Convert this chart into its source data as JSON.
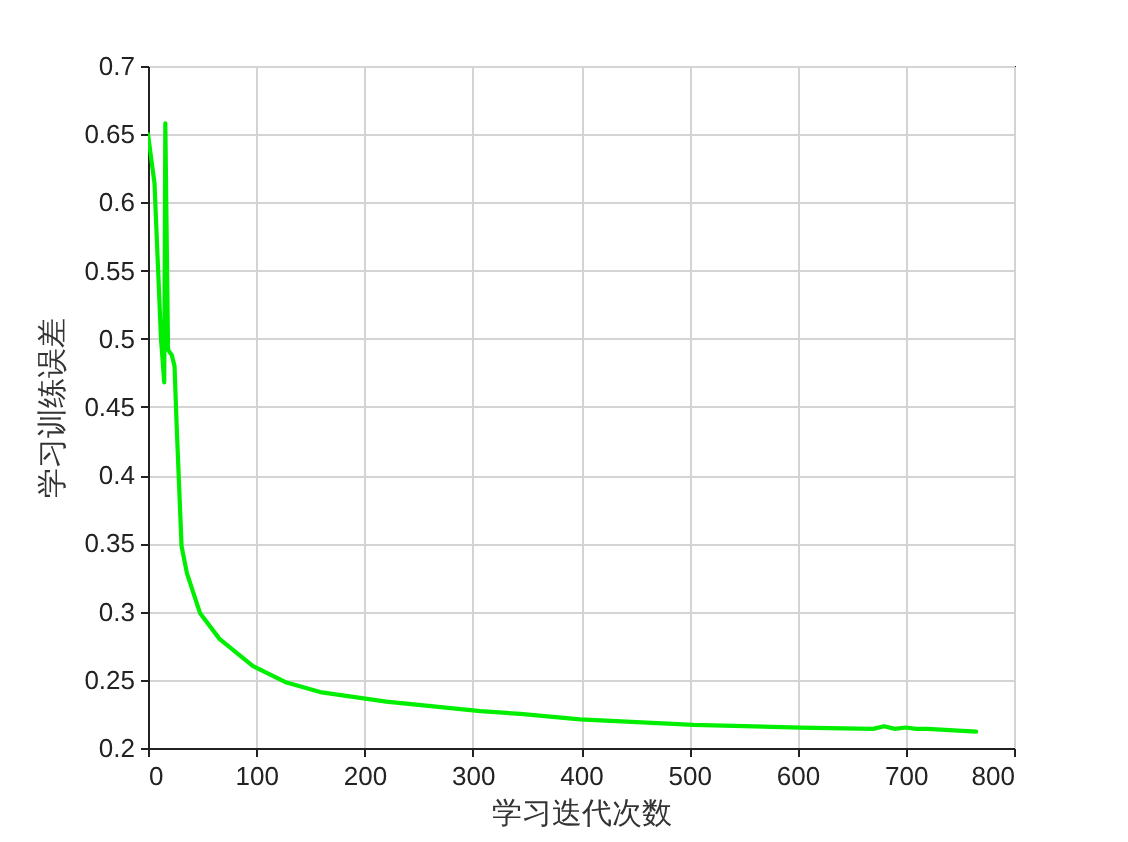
{
  "chart_data": {
    "type": "line",
    "xlabel": "学习迭代次数",
    "ylabel": "学习训练误差",
    "series": [
      {
        "color": "#00ee00",
        "x": [
          0,
          6,
          12,
          15,
          16,
          18.5,
          22,
          24.5,
          26.5,
          31,
          36,
          48,
          66,
          97,
          128,
          159,
          220,
          282,
          307,
          344,
          399,
          504,
          603,
          670,
          680,
          690,
          700,
          710,
          720,
          765
        ],
        "values": [
          0.65,
          0.614,
          0.5,
          0.468,
          0.658,
          0.492,
          0.488,
          0.48,
          0.436,
          0.348,
          0.328,
          0.299,
          0.28,
          0.26,
          0.248,
          0.241,
          0.234,
          0.229,
          0.227,
          0.225,
          0.221,
          0.217,
          0.215,
          0.214,
          0.216,
          0.214,
          0.215,
          0.214,
          0.214,
          0.212
        ]
      }
    ],
    "xlim": [
      0,
      800
    ],
    "ylim": [
      0.2,
      0.7
    ],
    "xticks": [
      0,
      100,
      200,
      300,
      400,
      500,
      600,
      700,
      800
    ],
    "yticks": [
      0.2,
      0.25,
      0.3,
      0.35,
      0.4,
      0.45,
      0.5,
      0.55,
      0.6,
      0.65,
      0.7
    ],
    "grid": true
  }
}
